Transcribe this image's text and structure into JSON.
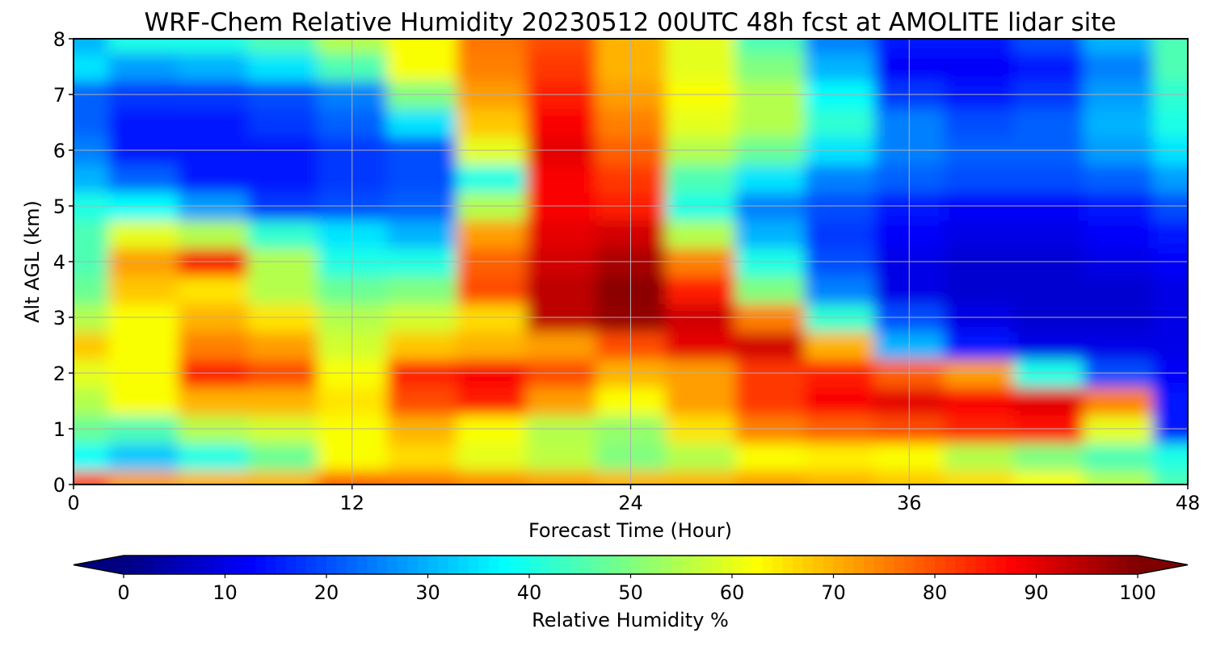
{
  "chart_data": {
    "type": "heatmap",
    "title": "WRF-Chem Relative Humidity 20230512 00UTC 48h fcst at AMOLITE lidar site",
    "xlabel": "Forecast Time (Hour)",
    "ylabel": "Alt AGL (km)",
    "xlim": [
      0,
      48
    ],
    "ylim": [
      0,
      8
    ],
    "x_ticks": [
      0,
      12,
      24,
      36,
      48
    ],
    "y_ticks": [
      0,
      1,
      2,
      3,
      4,
      5,
      6,
      7,
      8
    ],
    "grid": true,
    "colormap": "jet",
    "x": [
      0,
      3,
      6,
      9,
      12,
      15,
      18,
      21,
      24,
      27,
      30,
      33,
      36,
      39,
      42,
      45,
      48
    ],
    "y": [
      0,
      0.5,
      1,
      1.5,
      2,
      2.5,
      3,
      3.5,
      4,
      4.5,
      5,
      5.5,
      6,
      6.5,
      7,
      7.5,
      8
    ],
    "z": [
      [
        80,
        72,
        70,
        70,
        78,
        76,
        74,
        72,
        70,
        70,
        72,
        70,
        68,
        66,
        62,
        55,
        45
      ],
      [
        38,
        32,
        40,
        48,
        62,
        66,
        60,
        56,
        50,
        55,
        62,
        64,
        62,
        55,
        50,
        45,
        40
      ],
      [
        48,
        45,
        55,
        58,
        62,
        70,
        62,
        55,
        52,
        65,
        75,
        78,
        80,
        84,
        86,
        60,
        15
      ],
      [
        55,
        62,
        70,
        70,
        65,
        80,
        85,
        72,
        62,
        72,
        82,
        88,
        90,
        88,
        90,
        75,
        15
      ],
      [
        60,
        62,
        85,
        80,
        62,
        84,
        88,
        80,
        70,
        72,
        82,
        85,
        78,
        72,
        40,
        20,
        12
      ],
      [
        68,
        62,
        75,
        72,
        58,
        68,
        70,
        72,
        80,
        90,
        92,
        70,
        30,
        15,
        10,
        10,
        10
      ],
      [
        55,
        62,
        70,
        65,
        55,
        58,
        66,
        94,
        98,
        92,
        75,
        42,
        20,
        10,
        8,
        8,
        10
      ],
      [
        48,
        68,
        65,
        55,
        48,
        50,
        80,
        94,
        99,
        85,
        50,
        25,
        10,
        8,
        8,
        8,
        10
      ],
      [
        45,
        72,
        88,
        55,
        40,
        40,
        78,
        92,
        96,
        75,
        40,
        20,
        10,
        8,
        8,
        10,
        12
      ],
      [
        45,
        60,
        55,
        42,
        35,
        30,
        72,
        90,
        92,
        55,
        30,
        18,
        12,
        10,
        10,
        12,
        15
      ],
      [
        40,
        38,
        28,
        18,
        20,
        22,
        55,
        88,
        85,
        40,
        25,
        20,
        15,
        12,
        12,
        15,
        20
      ],
      [
        30,
        22,
        15,
        15,
        18,
        20,
        40,
        88,
        82,
        45,
        35,
        25,
        22,
        20,
        20,
        22,
        28
      ],
      [
        25,
        15,
        15,
        15,
        18,
        20,
        60,
        90,
        78,
        55,
        48,
        35,
        25,
        22,
        22,
        28,
        35
      ],
      [
        22,
        15,
        15,
        18,
        22,
        35,
        68,
        88,
        75,
        60,
        55,
        42,
        25,
        20,
        22,
        30,
        40
      ],
      [
        22,
        18,
        18,
        20,
        25,
        50,
        72,
        85,
        72,
        62,
        55,
        38,
        18,
        15,
        18,
        28,
        42
      ],
      [
        35,
        28,
        30,
        35,
        45,
        62,
        75,
        82,
        70,
        60,
        50,
        30,
        12,
        12,
        15,
        25,
        45
      ],
      [
        30,
        40,
        40,
        45,
        55,
        62,
        76,
        80,
        70,
        60,
        45,
        25,
        15,
        15,
        20,
        30,
        45
      ]
    ],
    "colorbar": {
      "label": "Relative Humidity %",
      "min": 0,
      "max": 100,
      "ticks": [
        0,
        10,
        20,
        30,
        40,
        50,
        60,
        70,
        80,
        90,
        100
      ],
      "extend": "both"
    }
  }
}
